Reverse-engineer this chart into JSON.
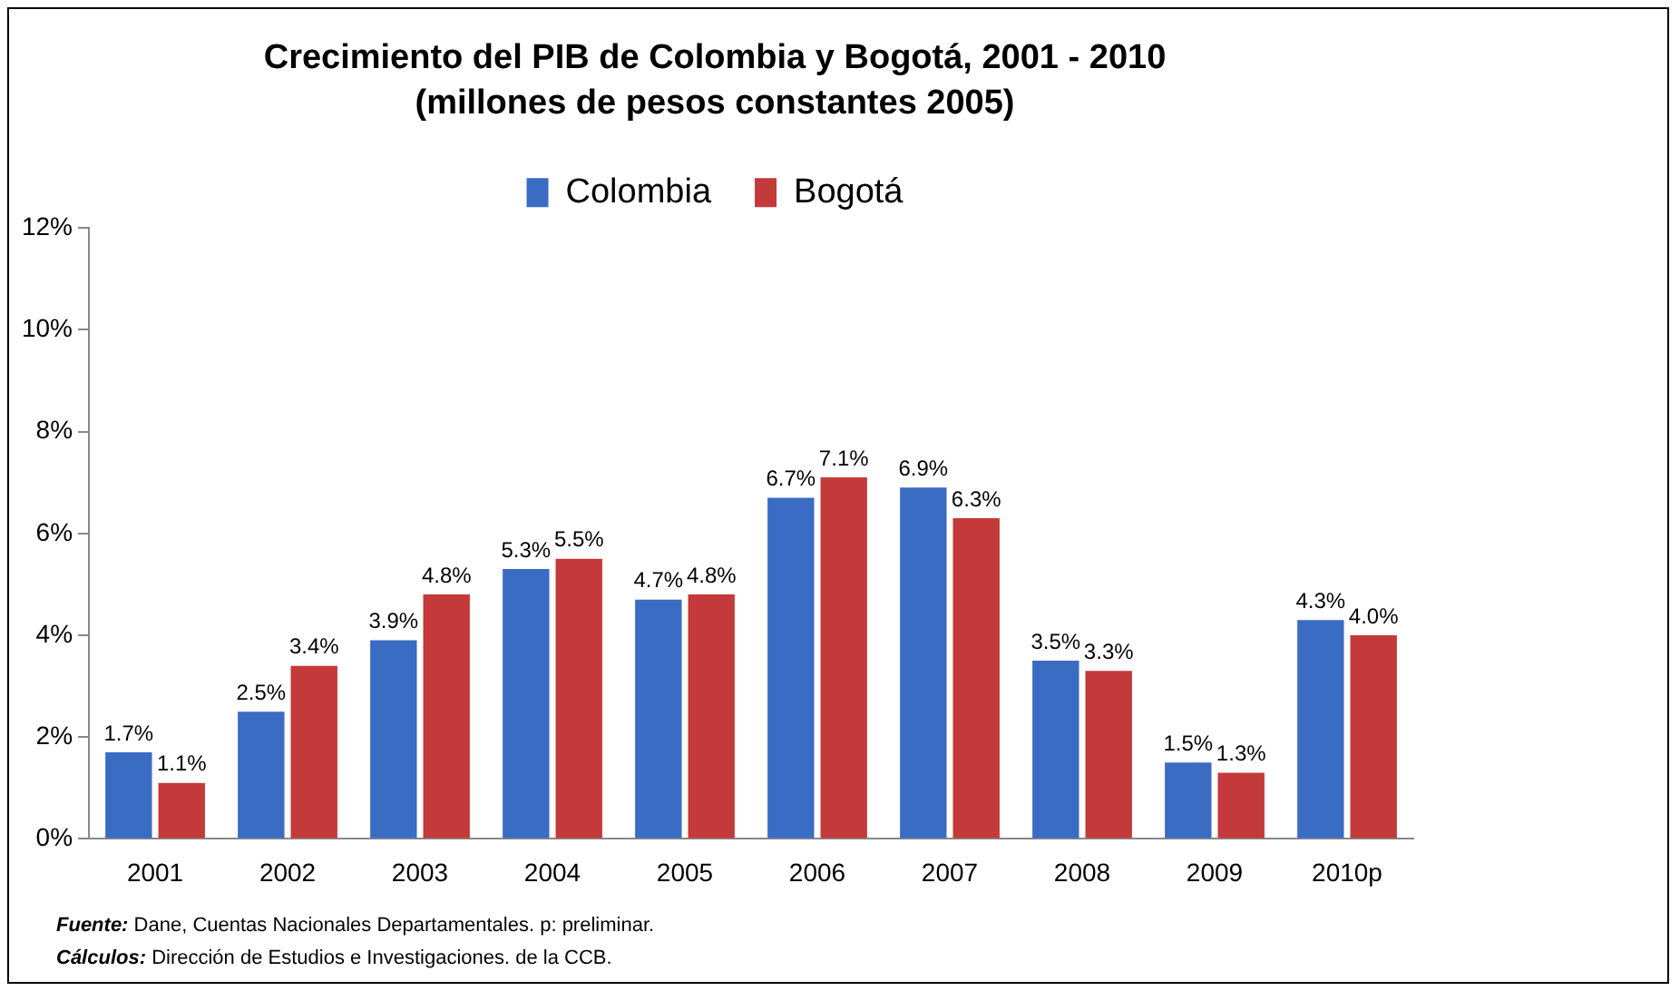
{
  "chart_data": {
    "type": "bar",
    "title": "Crecimiento del PIB de Colombia y Bogotá, 2001 - 2010",
    "subtitle": "(millones de pesos constantes 2005)",
    "categories": [
      "2001",
      "2002",
      "2003",
      "2004",
      "2005",
      "2006",
      "2007",
      "2008",
      "2009",
      "2010p"
    ],
    "series": [
      {
        "name": "Colombia",
        "color": "#3a6cc4",
        "values": [
          1.7,
          2.5,
          3.9,
          5.3,
          4.7,
          6.7,
          6.9,
          3.5,
          1.5,
          4.3
        ],
        "value_labels": [
          "1.7%",
          "2.5%",
          "3.9%",
          "5.3%",
          "4.7%",
          "6.7%",
          "6.9%",
          "3.5%",
          "1.5%",
          "4.3%"
        ]
      },
      {
        "name": "Bogotá",
        "color": "#c43a3a",
        "values": [
          1.1,
          3.4,
          4.8,
          5.5,
          4.8,
          7.1,
          6.3,
          3.3,
          1.3,
          4.0
        ],
        "value_labels": [
          "1.1%",
          "3.4%",
          "4.8%",
          "5.5%",
          "4.8%",
          "7.1%",
          "6.3%",
          "3.3%",
          "1.3%",
          "4.0%"
        ]
      }
    ],
    "ylim": [
      0,
      12
    ],
    "yticks": [
      {
        "value": 0,
        "label": "0%"
      },
      {
        "value": 2,
        "label": "2%"
      },
      {
        "value": 4,
        "label": "4%"
      },
      {
        "value": 6,
        "label": "6%"
      },
      {
        "value": 8,
        "label": "8%"
      },
      {
        "value": 10,
        "label": "10%"
      },
      {
        "value": 12,
        "label": "12%"
      }
    ],
    "grid": false,
    "legend": "top",
    "annotations": [
      "Fuente: Dane, Cuentas Nacionales Departamentales. p: preliminar.",
      "Cálculos: Dirección de Estudios e Investigaciones. de la CCB."
    ]
  }
}
